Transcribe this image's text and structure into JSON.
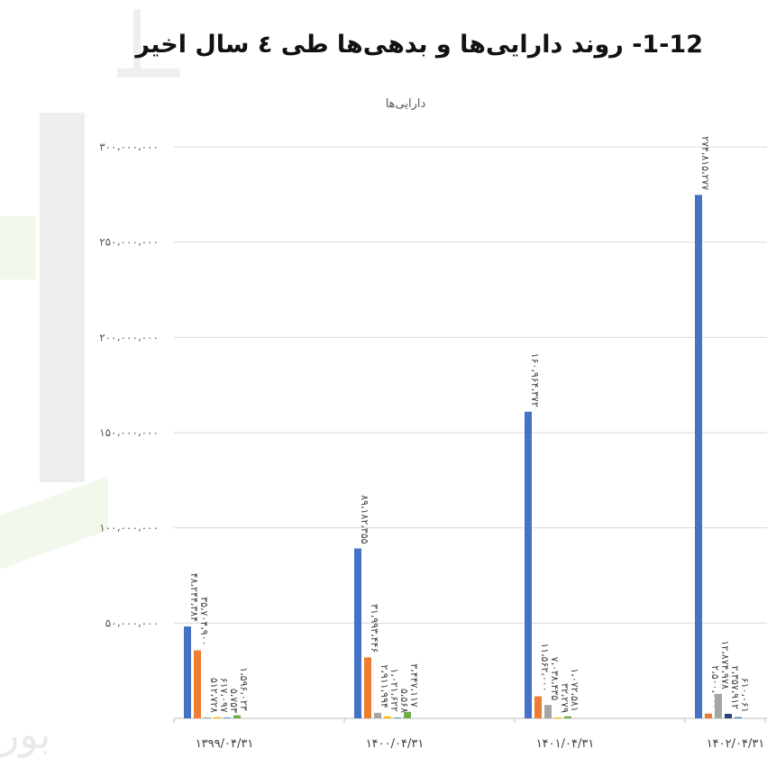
{
  "page": {
    "title": "1-12- روند دارایی‌ها و بدهی‌ها طی ٤ سال اخیر"
  },
  "chart_data": {
    "type": "bar",
    "title": "دارایی‌ها",
    "xlabel": "",
    "ylabel": "",
    "ylim": [
      0,
      300000000
    ],
    "yticks": [
      50000000,
      100000000,
      150000000,
      200000000,
      250000000,
      300000000
    ],
    "ytick_labels": [
      "۵۰،۰۰۰،۰۰۰",
      "۱۰۰،۰۰۰،۰۰۰",
      "۱۵۰،۰۰۰،۰۰۰",
      "۲۰۰،۰۰۰،۰۰۰",
      "۲۵۰،۰۰۰،۰۰۰",
      "۳۰۰،۰۰۰،۰۰۰"
    ],
    "categories": [
      "۱۳۹۹/۰۴/۳۱",
      "۱۴۰۰/۰۴/۳۱",
      "۱۴۰۱/۰۴/۳۱",
      "۱۴۰۲/۰۴/۳۱"
    ],
    "grid": true,
    "series_colors": [
      "#4472C4",
      "#ED7D31",
      "#A5A5A5",
      "#FFC000",
      "#5B9BD5",
      "#70AD47",
      "#264478"
    ],
    "series": [
      {
        "values": [
          48244384,
          89182355,
          160964372,
          274815277
        ],
        "labels": [
          "۴۸،۲۴۴،۳۸۴",
          "۸۹،۱۸۲،۳۵۵",
          "۱۶۰،۹۶۴،۳۷۲",
          "۲۷۴،۸۱۵،۲۷۷"
        ]
      },
      {
        "values": [
          35704900,
          31993446,
          11562000,
          2500000
        ],
        "labels": [
          "۳۵،۷۰۴،۹۰۰",
          "۳۱،۹۹۳،۴۴۶",
          "۱۱،۵۶۲،۰۰۰",
          "۲،۵۰۰،۰۰۰"
        ]
      },
      {
        "values": [
          512728,
          2911994,
          7038435,
          12874978
        ],
        "labels": [
          "۵۱۲،۷۲۸",
          "۲،۹۱۱،۹۹۴",
          "۷،۰۳۸،۴۳۵",
          "۱۲،۸۷۴،۹۷۸"
        ]
      },
      {
        "values": [
          617097,
          1021622,
          32279,
          0
        ],
        "labels": [
          "۶۱۷،۰۹۷",
          "۱،۰۲۱،۶۲۲",
          "۳۲،۲۷۹",
          ""
        ]
      },
      {
        "values": [
          5753,
          5568,
          0,
          0
        ],
        "labels": [
          "۵،۷۵۳",
          "۵،۵۶۸",
          "",
          ""
        ]
      },
      {
        "values": [
          1596023,
          3447117,
          1072581,
          0
        ],
        "labels": [
          "۱،۵۹۶،۰۲۳",
          "۳،۴۴۷،۱۱۷",
          "۱،۰۷۲،۵۸۱",
          ""
        ]
      },
      {
        "values": [
          0,
          0,
          0,
          2357912
        ],
        "labels": [
          "",
          "",
          "",
          "۲،۳۵۷،۹۱۲"
        ]
      },
      {
        "values": [
          0,
          0,
          0,
          610061
        ],
        "labels": [
          "",
          "",
          "",
          "۶۱۰،۰۶۱"
        ]
      }
    ]
  }
}
